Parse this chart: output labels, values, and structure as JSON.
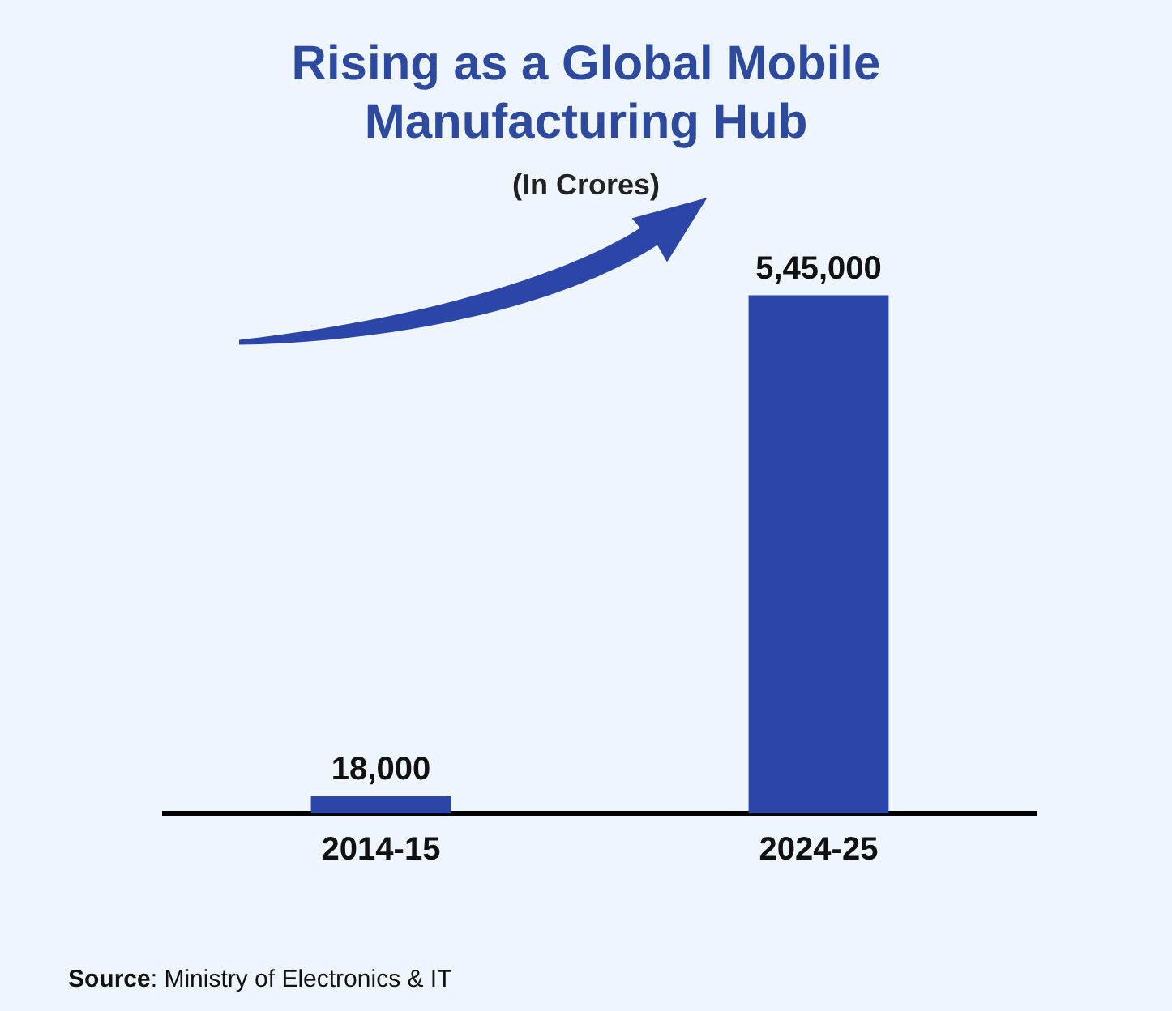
{
  "chart_data": {
    "type": "bar",
    "title": "Rising as a Global Mobile Manufacturing Hub",
    "subtitle": "(In Crores)",
    "categories": [
      "2014-15",
      "2024-25"
    ],
    "values": [
      18000,
      545000
    ],
    "value_labels": [
      "18,000",
      "5,45,000"
    ],
    "color": "#2b46a8",
    "tick_labels": "x",
    "grid": false,
    "legend": false,
    "annotations": [
      "Source: Ministry of Electronics & IT"
    ]
  }
}
